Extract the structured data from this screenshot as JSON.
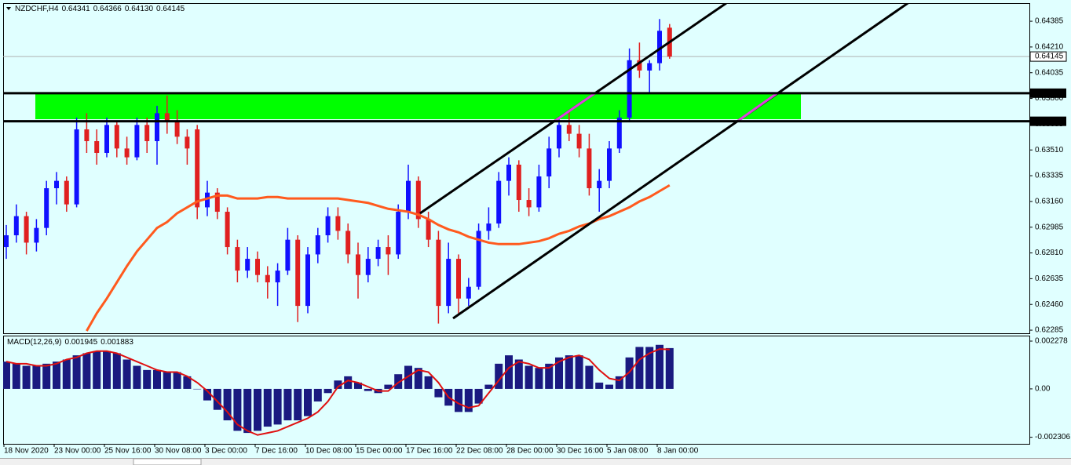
{
  "chart_data": [
    {
      "type": "candlestick",
      "title": "NZDCHF,H4",
      "header_values": [
        "0.64341",
        "0.64366",
        "0.64130",
        "0.64145"
      ],
      "categories": [
        "18 Nov 2020",
        null,
        null,
        null,
        null,
        "23 Nov 00:00",
        null,
        null,
        null,
        null,
        "25 Nov 16:00",
        null,
        null,
        null,
        null,
        "30 Nov 08:00",
        null,
        null,
        null,
        null,
        "3 Dec 00:00",
        null,
        null,
        null,
        null,
        "7 Dec 16:00",
        null,
        null,
        null,
        null,
        "10 Dec 08:00",
        null,
        null,
        null,
        null,
        "15 Dec 00:00",
        null,
        null,
        null,
        null,
        "17 Dec 16:00",
        null,
        null,
        null,
        null,
        "22 Dec 08:00",
        null,
        null,
        null,
        null,
        "28 Dec 00:00",
        null,
        null,
        null,
        null,
        "30 Dec 16:00",
        null,
        null,
        null,
        null,
        "5 Jan 08:00",
        null,
        null,
        null,
        null,
        "8 Jan 00:00",
        null
      ],
      "open": [
        0.6285,
        0.6293,
        0.6306,
        0.6288,
        0.6298,
        0.6325,
        0.633,
        0.6314,
        0.6365,
        0.6357,
        0.6349,
        0.6368,
        0.6352,
        0.6346,
        0.6368,
        0.6357,
        0.6376,
        0.637,
        0.636,
        0.6365,
        0.6312,
        0.6322,
        0.6309,
        0.6285,
        0.6269,
        0.6277,
        0.6266,
        0.6261,
        0.6269,
        0.629,
        0.6245,
        0.628,
        0.6293,
        0.6306,
        0.6296,
        0.628,
        0.6266,
        0.6277,
        0.6285,
        0.628,
        0.6309,
        0.633,
        0.6304,
        0.629,
        0.6245,
        0.6277,
        0.625,
        0.6258,
        0.6296,
        0.6301,
        0.633,
        0.6341,
        0.6317,
        0.6312,
        0.6333,
        0.6352,
        0.6368,
        0.6362,
        0.6352,
        0.6325,
        0.633,
        0.6352,
        0.6373,
        0.6412,
        0.6405,
        0.641,
        0.64341
      ],
      "high": [
        0.63,
        0.6314,
        0.6309,
        0.6304,
        0.633,
        0.6336,
        0.6333,
        0.6373,
        0.6376,
        0.6365,
        0.6373,
        0.637,
        0.636,
        0.6373,
        0.6373,
        0.6381,
        0.6388,
        0.6378,
        0.6365,
        0.6368,
        0.633,
        0.6325,
        0.6312,
        0.629,
        0.6285,
        0.6282,
        0.6272,
        0.6274,
        0.6298,
        0.6293,
        0.6285,
        0.6298,
        0.6312,
        0.6312,
        0.6301,
        0.6288,
        0.6285,
        0.629,
        0.6293,
        0.6314,
        0.6341,
        0.6333,
        0.6309,
        0.6296,
        0.6288,
        0.628,
        0.6264,
        0.6301,
        0.6312,
        0.6336,
        0.6346,
        0.6344,
        0.6325,
        0.6341,
        0.636,
        0.6373,
        0.6378,
        0.6368,
        0.6362,
        0.6338,
        0.6357,
        0.6378,
        0.642,
        0.6424,
        0.6412,
        0.644,
        0.64366
      ],
      "low": [
        0.6277,
        0.6288,
        0.628,
        0.6282,
        0.6293,
        0.6314,
        0.6309,
        0.6312,
        0.6349,
        0.6341,
        0.6346,
        0.6346,
        0.6341,
        0.6344,
        0.6349,
        0.6341,
        0.6362,
        0.6355,
        0.6341,
        0.6304,
        0.6306,
        0.6304,
        0.628,
        0.6261,
        0.6264,
        0.6261,
        0.625,
        0.6245,
        0.6266,
        0.6234,
        0.624,
        0.6274,
        0.6288,
        0.629,
        0.6274,
        0.625,
        0.6261,
        0.6272,
        0.6266,
        0.6277,
        0.6304,
        0.6298,
        0.6285,
        0.6233,
        0.624,
        0.624,
        0.6245,
        0.6256,
        0.629,
        0.6298,
        0.632,
        0.6309,
        0.6306,
        0.6309,
        0.6325,
        0.6346,
        0.6357,
        0.6346,
        0.632,
        0.6309,
        0.6325,
        0.6349,
        0.637,
        0.64,
        0.639,
        0.6405,
        0.6413
      ],
      "close": [
        0.6293,
        0.6306,
        0.6288,
        0.6298,
        0.6325,
        0.633,
        0.6314,
        0.6365,
        0.6357,
        0.6349,
        0.6368,
        0.6352,
        0.6346,
        0.6368,
        0.6357,
        0.6376,
        0.637,
        0.636,
        0.6352,
        0.6312,
        0.6322,
        0.6309,
        0.6285,
        0.6269,
        0.6277,
        0.6266,
        0.6261,
        0.6269,
        0.629,
        0.6245,
        0.628,
        0.6293,
        0.6306,
        0.6296,
        0.628,
        0.6266,
        0.6277,
        0.6285,
        0.628,
        0.6309,
        0.633,
        0.6304,
        0.629,
        0.6245,
        0.6277,
        0.625,
        0.6258,
        0.6296,
        0.6301,
        0.633,
        0.6341,
        0.6317,
        0.6312,
        0.6333,
        0.6352,
        0.6368,
        0.6362,
        0.6352,
        0.6325,
        0.633,
        0.6352,
        0.6373,
        0.6412,
        0.6405,
        0.641,
        0.6432,
        0.64145
      ],
      "up_color": "#1010ff",
      "down_color": "#e02020",
      "ma": {
        "color": "#ff5a1e",
        "values": [
          null,
          null,
          null,
          null,
          null,
          null,
          null,
          null,
          0.6228,
          0.624,
          0.625,
          0.6261,
          0.6272,
          0.6282,
          0.629,
          0.6298,
          0.6302,
          0.6308,
          0.6312,
          0.6316,
          0.6318,
          0.632,
          0.632,
          0.6318,
          0.6318,
          0.6318,
          0.6319,
          0.6319,
          0.6318,
          0.6318,
          0.6318,
          0.6318,
          0.6318,
          0.6318,
          0.6317,
          0.6316,
          0.6315,
          0.6313,
          0.6311,
          0.631,
          0.6309,
          0.6307,
          0.6304,
          0.63,
          0.6297,
          0.6295,
          0.6292,
          0.629,
          0.6288,
          0.6287,
          0.6287,
          0.6287,
          0.6288,
          0.6289,
          0.6291,
          0.6294,
          0.6296,
          0.6299,
          0.6301,
          0.6304,
          0.6306,
          0.6309,
          0.6312,
          0.6316,
          0.6319,
          0.6323,
          0.6327
        ]
      },
      "levels": [
        0.63896,
        0.63705
      ],
      "last": 0.64145,
      "ylim": [
        0.62264,
        0.64508
      ],
      "yticks": [
        0.64385,
        {
          "value": 0.6421,
          "label": "0.64210"
        },
        0.64035,
        {
          "value": 0.6386,
          "label": "0.63860"
        },
        0.63685,
        {
          "value": 0.6351,
          "label": "0.63510"
        },
        0.63335,
        {
          "value": 0.6316,
          "label": "0.63160"
        },
        0.62985,
        {
          "value": 0.6281,
          "label": "0.62810"
        },
        0.62635,
        {
          "value": 0.6246,
          "label": "0.62460"
        },
        0.62285
      ]
    },
    {
      "type": "macd",
      "title": "MACD(12,26,9)",
      "header_values": [
        "0.001945",
        "0.001883"
      ],
      "series": [
        {
          "color": "#1a1a80",
          "values": [
            0.0013,
            0.0012,
            0.0011,
            0.0011,
            0.0012,
            0.0013,
            0.0014,
            0.0016,
            0.0017,
            0.0018,
            0.0018,
            0.0017,
            0.0014,
            0.0011,
            0.0009,
            0.0009,
            0.0008,
            0.0008,
            0.0006,
            0.0,
            -0.00055,
            -0.001,
            -0.0015,
            -0.002,
            -0.0021,
            -0.002,
            -0.0018,
            -0.0017,
            -0.0015,
            -0.0015,
            -0.0013,
            -0.0006,
            -0.0002,
            0.0004,
            0.0006,
            0.0003,
            -0.0001,
            -0.0002,
            0.0002,
            0.0007,
            0.0011,
            0.001,
            0.0006,
            -0.0004,
            -0.0008,
            -0.0011,
            -0.0011,
            -0.0007,
            0.0002,
            0.0012,
            0.0016,
            0.0014,
            0.0011,
            0.001,
            0.0012,
            0.0015,
            0.0016,
            0.0016,
            0.0011,
            0.0003,
            0.0002,
            0.0006,
            0.0015,
            0.002,
            0.002,
            0.0021,
            0.001945
          ]
        },
        {
          "color": "#e01010",
          "values": [
            0.0013,
            0.0012,
            0.0012,
            0.0011,
            0.0011,
            0.0012,
            0.0014,
            0.0015,
            0.0017,
            0.0018,
            0.0018,
            0.0017,
            0.0015,
            0.0013,
            0.0011,
            0.0009,
            0.0008,
            0.0008,
            0.0006,
            0.0003,
            -0.0001,
            -0.0006,
            -0.0011,
            -0.0017,
            -0.002,
            -0.0022,
            -0.0021,
            -0.002,
            -0.0018,
            -0.0016,
            -0.0014,
            -0.0011,
            -0.0006,
            0.0001,
            0.0004,
            0.0003,
            0.0001,
            -0.0001,
            -0.0001,
            0.0003,
            0.0006,
            0.0009,
            0.0008,
            0.0003,
            -0.0004,
            -0.0007,
            -0.0009,
            -0.0008,
            -0.0002,
            0.0004,
            0.001,
            0.0013,
            0.0012,
            0.001,
            0.001,
            0.0013,
            0.0015,
            0.0016,
            0.0014,
            0.0009,
            0.0005,
            0.0004,
            0.0008,
            0.0014,
            0.0017,
            0.0019,
            0.001883
          ]
        }
      ],
      "ylim": [
        -0.00262,
        0.00254
      ],
      "yticks": [
        0.002278,
        {
          "value": 0,
          "label": "0.00"
        },
        -0.002306
      ]
    }
  ]
}
